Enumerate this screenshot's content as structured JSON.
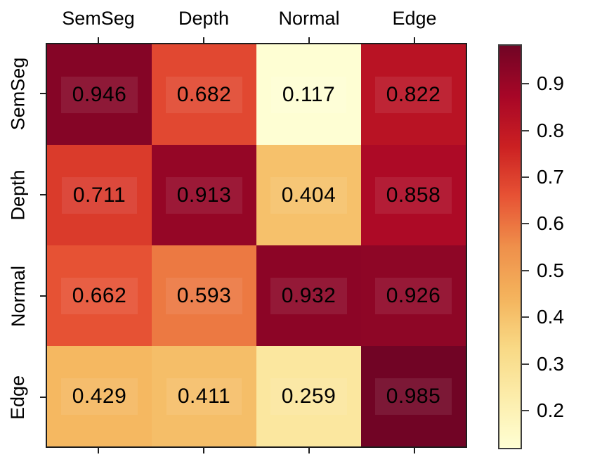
{
  "chart_data": {
    "type": "heatmap",
    "x_categories": [
      "SemSeg",
      "Depth",
      "Normal",
      "Edge"
    ],
    "y_categories": [
      "SemSeg",
      "Depth",
      "Normal",
      "Edge"
    ],
    "values": [
      [
        0.946,
        0.682,
        0.117,
        0.822
      ],
      [
        0.711,
        0.913,
        0.404,
        0.858
      ],
      [
        0.662,
        0.593,
        0.932,
        0.926
      ],
      [
        0.429,
        0.411,
        0.259,
        0.985
      ]
    ],
    "value_decimals": 3,
    "vmin": 0.117,
    "vmax": 0.985,
    "colormap": {
      "name": "YlOrRd",
      "stops": [
        "#ffffcc",
        "#ffeda0",
        "#fed976",
        "#feb24c",
        "#fd8d3c",
        "#fc4e2a",
        "#e31a1c",
        "#bd0026",
        "#800026"
      ]
    },
    "colorbar": {
      "position": "right",
      "tick_labels": [
        "0.9",
        "0.8",
        "0.7",
        "0.6",
        "0.5",
        "0.4",
        "0.3",
        "0.2"
      ],
      "tick_values": [
        0.9,
        0.8,
        0.7,
        0.6,
        0.5,
        0.4,
        0.3,
        0.2
      ]
    },
    "grid": false,
    "title": "",
    "xlabel": "",
    "ylabel": "",
    "text_color": "#000000",
    "axis_color": "#1d1d1d",
    "background_color": "#ffffff"
  }
}
